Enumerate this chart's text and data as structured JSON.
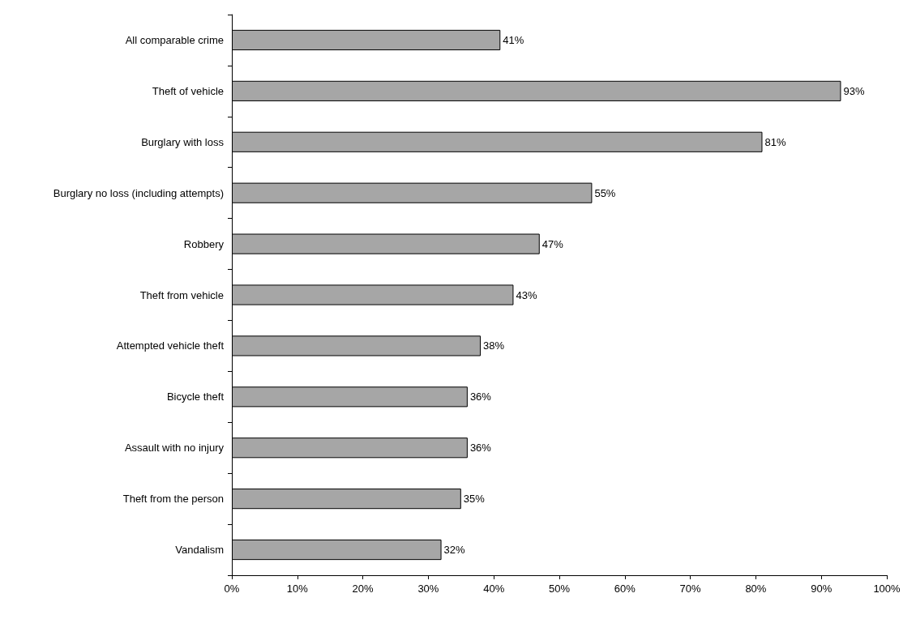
{
  "chart_data": {
    "type": "bar",
    "orientation": "horizontal",
    "categories": [
      "All comparable crime",
      "Theft of vehicle",
      "Burglary with loss",
      "Burglary no loss (including attempts)",
      "Robbery",
      "Theft from vehicle",
      "Attempted vehicle theft",
      "Bicycle theft",
      "Assault with no injury",
      "Theft from the person",
      "Vandalism"
    ],
    "values": [
      41,
      93,
      81,
      55,
      47,
      43,
      38,
      36,
      36,
      35,
      32
    ],
    "value_labels": [
      "41%",
      "93%",
      "81%",
      "55%",
      "47%",
      "43%",
      "38%",
      "36%",
      "36%",
      "35%",
      "32%"
    ],
    "color": "#a6a6a6",
    "xlim": [
      0,
      100
    ],
    "xticks": [
      {
        "value": 0,
        "label": "0%"
      },
      {
        "value": 10,
        "label": "10%"
      },
      {
        "value": 20,
        "label": "20%"
      },
      {
        "value": 30,
        "label": "30%"
      },
      {
        "value": 40,
        "label": "40%"
      },
      {
        "value": 50,
        "label": "50%"
      },
      {
        "value": 60,
        "label": "60%"
      },
      {
        "value": 70,
        "label": "70%"
      },
      {
        "value": 80,
        "label": "80%"
      },
      {
        "value": 90,
        "label": "90%"
      },
      {
        "value": 100,
        "label": "100%"
      }
    ],
    "grid": false
  }
}
